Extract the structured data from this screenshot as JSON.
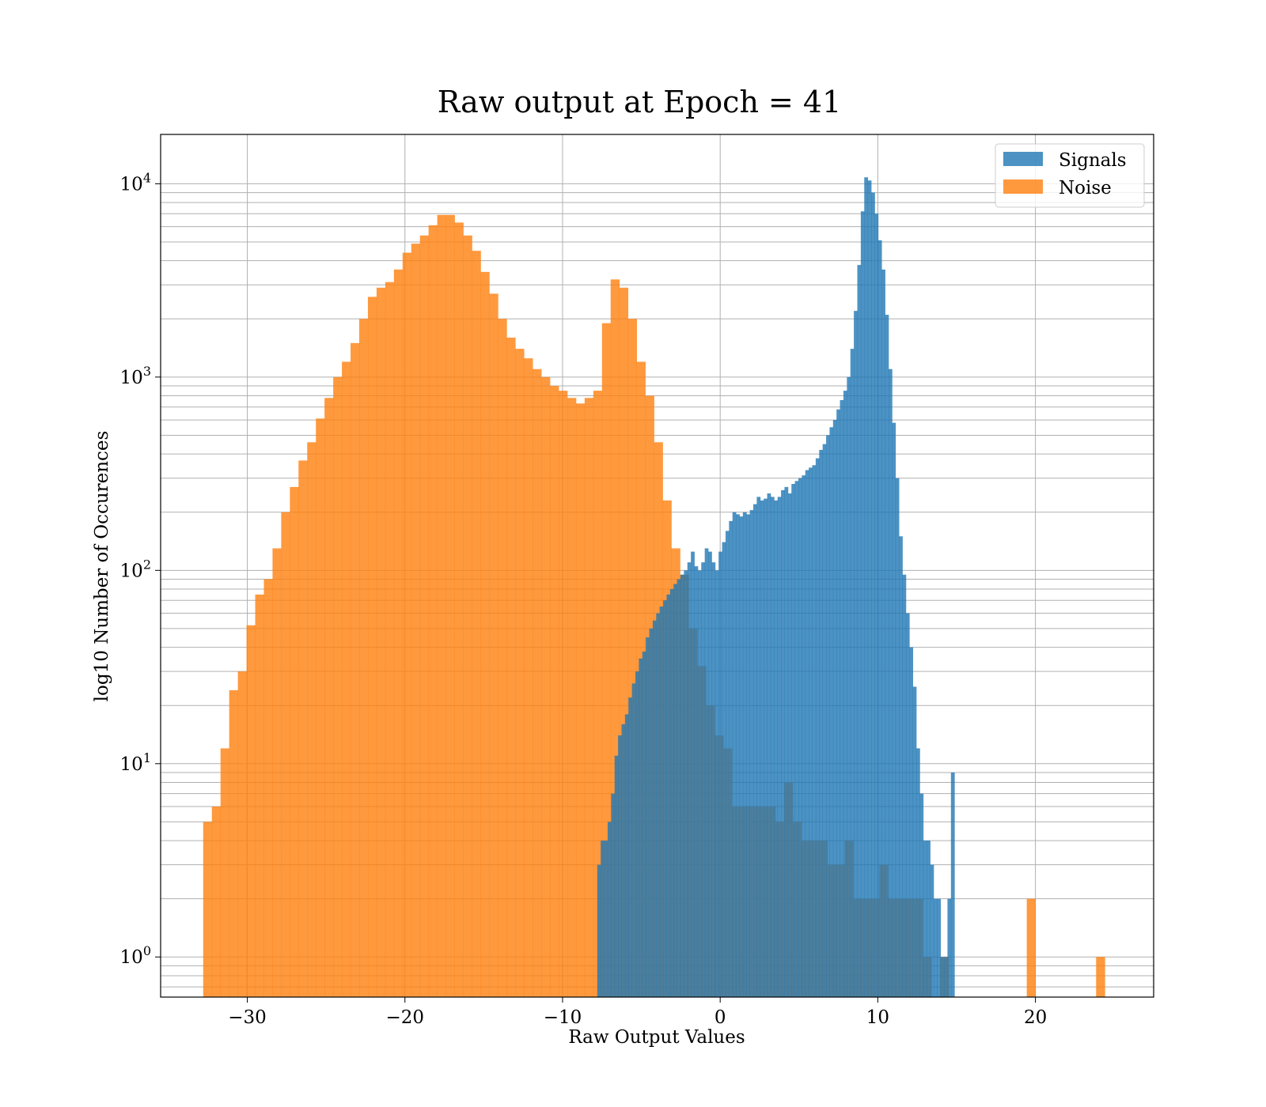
{
  "chart_data": {
    "type": "bar",
    "title": "Raw output at Epoch = 41",
    "xlabel": "Raw Output Values",
    "ylabel": "log10 Number of Occurences",
    "xlim": [
      -35.5,
      27.5
    ],
    "ylim": [
      0.62,
      18000
    ],
    "yscale": "log",
    "grid": true,
    "legend_position": "top-right",
    "x_ticks": [
      -30,
      -20,
      -10,
      0,
      10,
      20
    ],
    "x_tick_labels": [
      "−30",
      "−20",
      "−10",
      "0",
      "10",
      "20"
    ],
    "y_ticks": [
      1,
      10,
      100,
      1000,
      10000
    ],
    "y_tick_bases": [
      "10",
      "10",
      "10",
      "10",
      "10"
    ],
    "y_tick_exponents": [
      "0",
      "1",
      "2",
      "3",
      "4"
    ],
    "series": [
      {
        "name": "Noise",
        "color": "#ff7f0e",
        "opacity": 0.8,
        "bin_edges": [
          -32.8,
          -32.25,
          -31.7,
          -31.15,
          -30.6,
          -30.05,
          -29.5,
          -28.95,
          -28.4,
          -27.85,
          -27.3,
          -26.75,
          -26.2,
          -25.65,
          -25.1,
          -24.55,
          -24.0,
          -23.45,
          -22.9,
          -22.35,
          -21.8,
          -21.25,
          -20.7,
          -20.15,
          -19.6,
          -19.05,
          -18.5,
          -17.95,
          -17.4,
          -16.85,
          -16.3,
          -15.75,
          -15.2,
          -14.65,
          -14.1,
          -13.55,
          -13.0,
          -12.45,
          -11.9,
          -11.35,
          -10.8,
          -10.25,
          -9.7,
          -9.15,
          -8.6,
          -8.05,
          -7.5,
          -6.95,
          -6.4,
          -5.85,
          -5.3,
          -4.75,
          -4.2,
          -3.65,
          -3.1,
          -2.55,
          -2.0,
          -1.45,
          -0.9,
          -0.35,
          0.2,
          0.75,
          1.3,
          1.85,
          2.4,
          2.95,
          3.5,
          4.05,
          4.6,
          5.15,
          5.7,
          6.25,
          6.8,
          7.35,
          7.9,
          8.45,
          9.0,
          9.55,
          10.1,
          10.65,
          11.2,
          11.75,
          12.3,
          12.85,
          13.4,
          13.95,
          14.5,
          15.05,
          15.6,
          16.15,
          16.7,
          17.25,
          17.8,
          18.35,
          18.9,
          19.45,
          20.0,
          20.55,
          21.1,
          21.65,
          22.2,
          22.75,
          23.3,
          23.85,
          24.4
        ],
        "counts": [
          5,
          6,
          12,
          24,
          30,
          52,
          75,
          90,
          130,
          200,
          270,
          370,
          460,
          610,
          780,
          1000,
          1200,
          1500,
          2000,
          2600,
          2900,
          3100,
          3600,
          4400,
          4900,
          5400,
          6100,
          6900,
          6900,
          6300,
          5400,
          4500,
          3500,
          2700,
          2000,
          1600,
          1400,
          1250,
          1100,
          1000,
          900,
          850,
          780,
          730,
          780,
          850,
          1900,
          3200,
          2900,
          2000,
          1200,
          800,
          460,
          230,
          130,
          95,
          50,
          32,
          20,
          14,
          12,
          6,
          6,
          6,
          6,
          6,
          5,
          8,
          5,
          4,
          4,
          4,
          3,
          3,
          4,
          2,
          2,
          2,
          3,
          2,
          2,
          2,
          2,
          1,
          0,
          1,
          0,
          0,
          0,
          0,
          0,
          0,
          0,
          0,
          0,
          2,
          0,
          0,
          0,
          0,
          0,
          0,
          0,
          1
        ]
      },
      {
        "name": "Signals",
        "color": "#1f77b4",
        "opacity": 0.8,
        "bin_edges": [
          -7.8,
          -7.58,
          -7.36,
          -7.14,
          -6.92,
          -6.7,
          -6.48,
          -6.26,
          -6.04,
          -5.82,
          -5.6,
          -5.38,
          -5.16,
          -4.94,
          -4.72,
          -4.5,
          -4.28,
          -4.06,
          -3.84,
          -3.62,
          -3.4,
          -3.18,
          -2.96,
          -2.74,
          -2.52,
          -2.3,
          -2.08,
          -1.86,
          -1.64,
          -1.42,
          -1.2,
          -0.98,
          -0.76,
          -0.54,
          -0.32,
          -0.1,
          0.12,
          0.34,
          0.56,
          0.78,
          1.0,
          1.22,
          1.44,
          1.66,
          1.88,
          2.1,
          2.32,
          2.54,
          2.76,
          2.98,
          3.2,
          3.42,
          3.64,
          3.86,
          4.08,
          4.3,
          4.52,
          4.74,
          4.96,
          5.18,
          5.4,
          5.62,
          5.84,
          6.06,
          6.28,
          6.5,
          6.72,
          6.94,
          7.16,
          7.38,
          7.6,
          7.82,
          8.04,
          8.26,
          8.48,
          8.7,
          8.92,
          9.14,
          9.36,
          9.58,
          9.8,
          10.02,
          10.24,
          10.46,
          10.68,
          10.9,
          11.12,
          11.34,
          11.56,
          11.78,
          12.0,
          12.22,
          12.44,
          12.66,
          12.88,
          13.1,
          13.32,
          13.54,
          13.76,
          13.98,
          14.2,
          14.42,
          14.64,
          14.86
        ],
        "counts": [
          3,
          4,
          4,
          5,
          7,
          11,
          14,
          16,
          18,
          22,
          26,
          30,
          35,
          38,
          45,
          50,
          55,
          60,
          65,
          70,
          75,
          80,
          85,
          90,
          95,
          100,
          110,
          125,
          105,
          100,
          110,
          130,
          125,
          110,
          100,
          125,
          140,
          160,
          180,
          200,
          195,
          190,
          200,
          195,
          205,
          220,
          240,
          230,
          235,
          250,
          240,
          230,
          240,
          260,
          270,
          250,
          280,
          290,
          300,
          310,
          330,
          340,
          350,
          380,
          420,
          450,
          500,
          550,
          600,
          680,
          760,
          850,
          1000,
          1400,
          2200,
          3800,
          7200,
          10800,
          10400,
          9000,
          7000,
          5100,
          3600,
          2100,
          1100,
          580,
          300,
          150,
          95,
          60,
          40,
          25,
          12,
          7,
          4,
          4,
          3,
          2,
          2,
          1,
          1,
          2,
          9
        ]
      }
    ]
  }
}
